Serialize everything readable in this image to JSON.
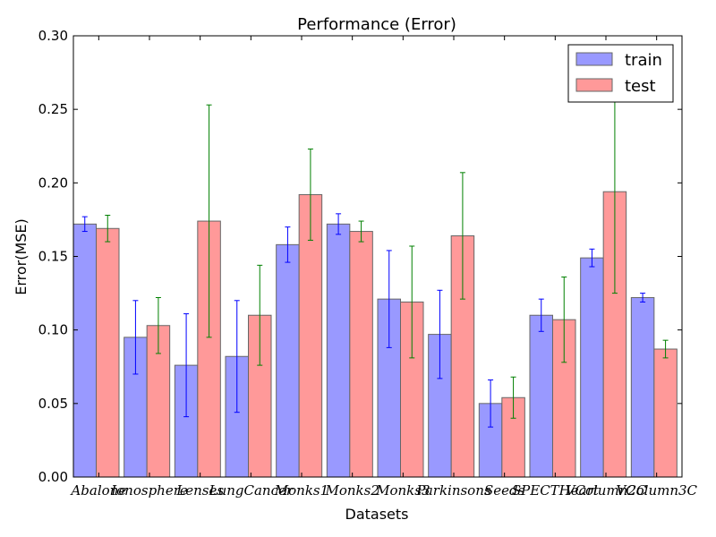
{
  "chart_data": {
    "type": "bar",
    "title": "Performance (Error)",
    "xlabel": "Datasets",
    "ylabel": "Error(MSE)",
    "ylim": [
      0,
      0.3
    ],
    "yticks": [
      "0.00",
      "0.05",
      "0.10",
      "0.15",
      "0.20",
      "0.25",
      "0.30"
    ],
    "ytick_values": [
      0,
      0.05,
      0.1,
      0.15,
      0.2,
      0.25,
      0.3
    ],
    "categories": [
      "Abalone",
      "Ionosphere",
      "Lenses",
      "LungCancer",
      "Monks1",
      "Monks2",
      "Monks3",
      "Parkinsons",
      "Seeds",
      "SPECTHeart",
      "VColumn2C",
      "VColumn3C"
    ],
    "legend_position": "top-right",
    "series": [
      {
        "name": "train",
        "color": "#9999ff",
        "error_color": "#0000ff",
        "values": [
          0.172,
          0.095,
          0.076,
          0.082,
          0.158,
          0.172,
          0.121,
          0.097,
          0.05,
          0.11,
          0.149,
          0.122
        ],
        "errors": [
          0.005,
          0.025,
          0.035,
          0.038,
          0.012,
          0.007,
          0.033,
          0.03,
          0.016,
          0.011,
          0.006,
          0.003
        ]
      },
      {
        "name": "test",
        "color": "#ff9999",
        "error_color": "#008000",
        "values": [
          0.169,
          0.103,
          0.174,
          0.11,
          0.192,
          0.167,
          0.119,
          0.164,
          0.054,
          0.107,
          0.194,
          0.087
        ],
        "errors": [
          0.009,
          0.019,
          0.079,
          0.034,
          0.031,
          0.007,
          0.038,
          0.043,
          0.014,
          0.029,
          0.069,
          0.006
        ]
      }
    ]
  }
}
